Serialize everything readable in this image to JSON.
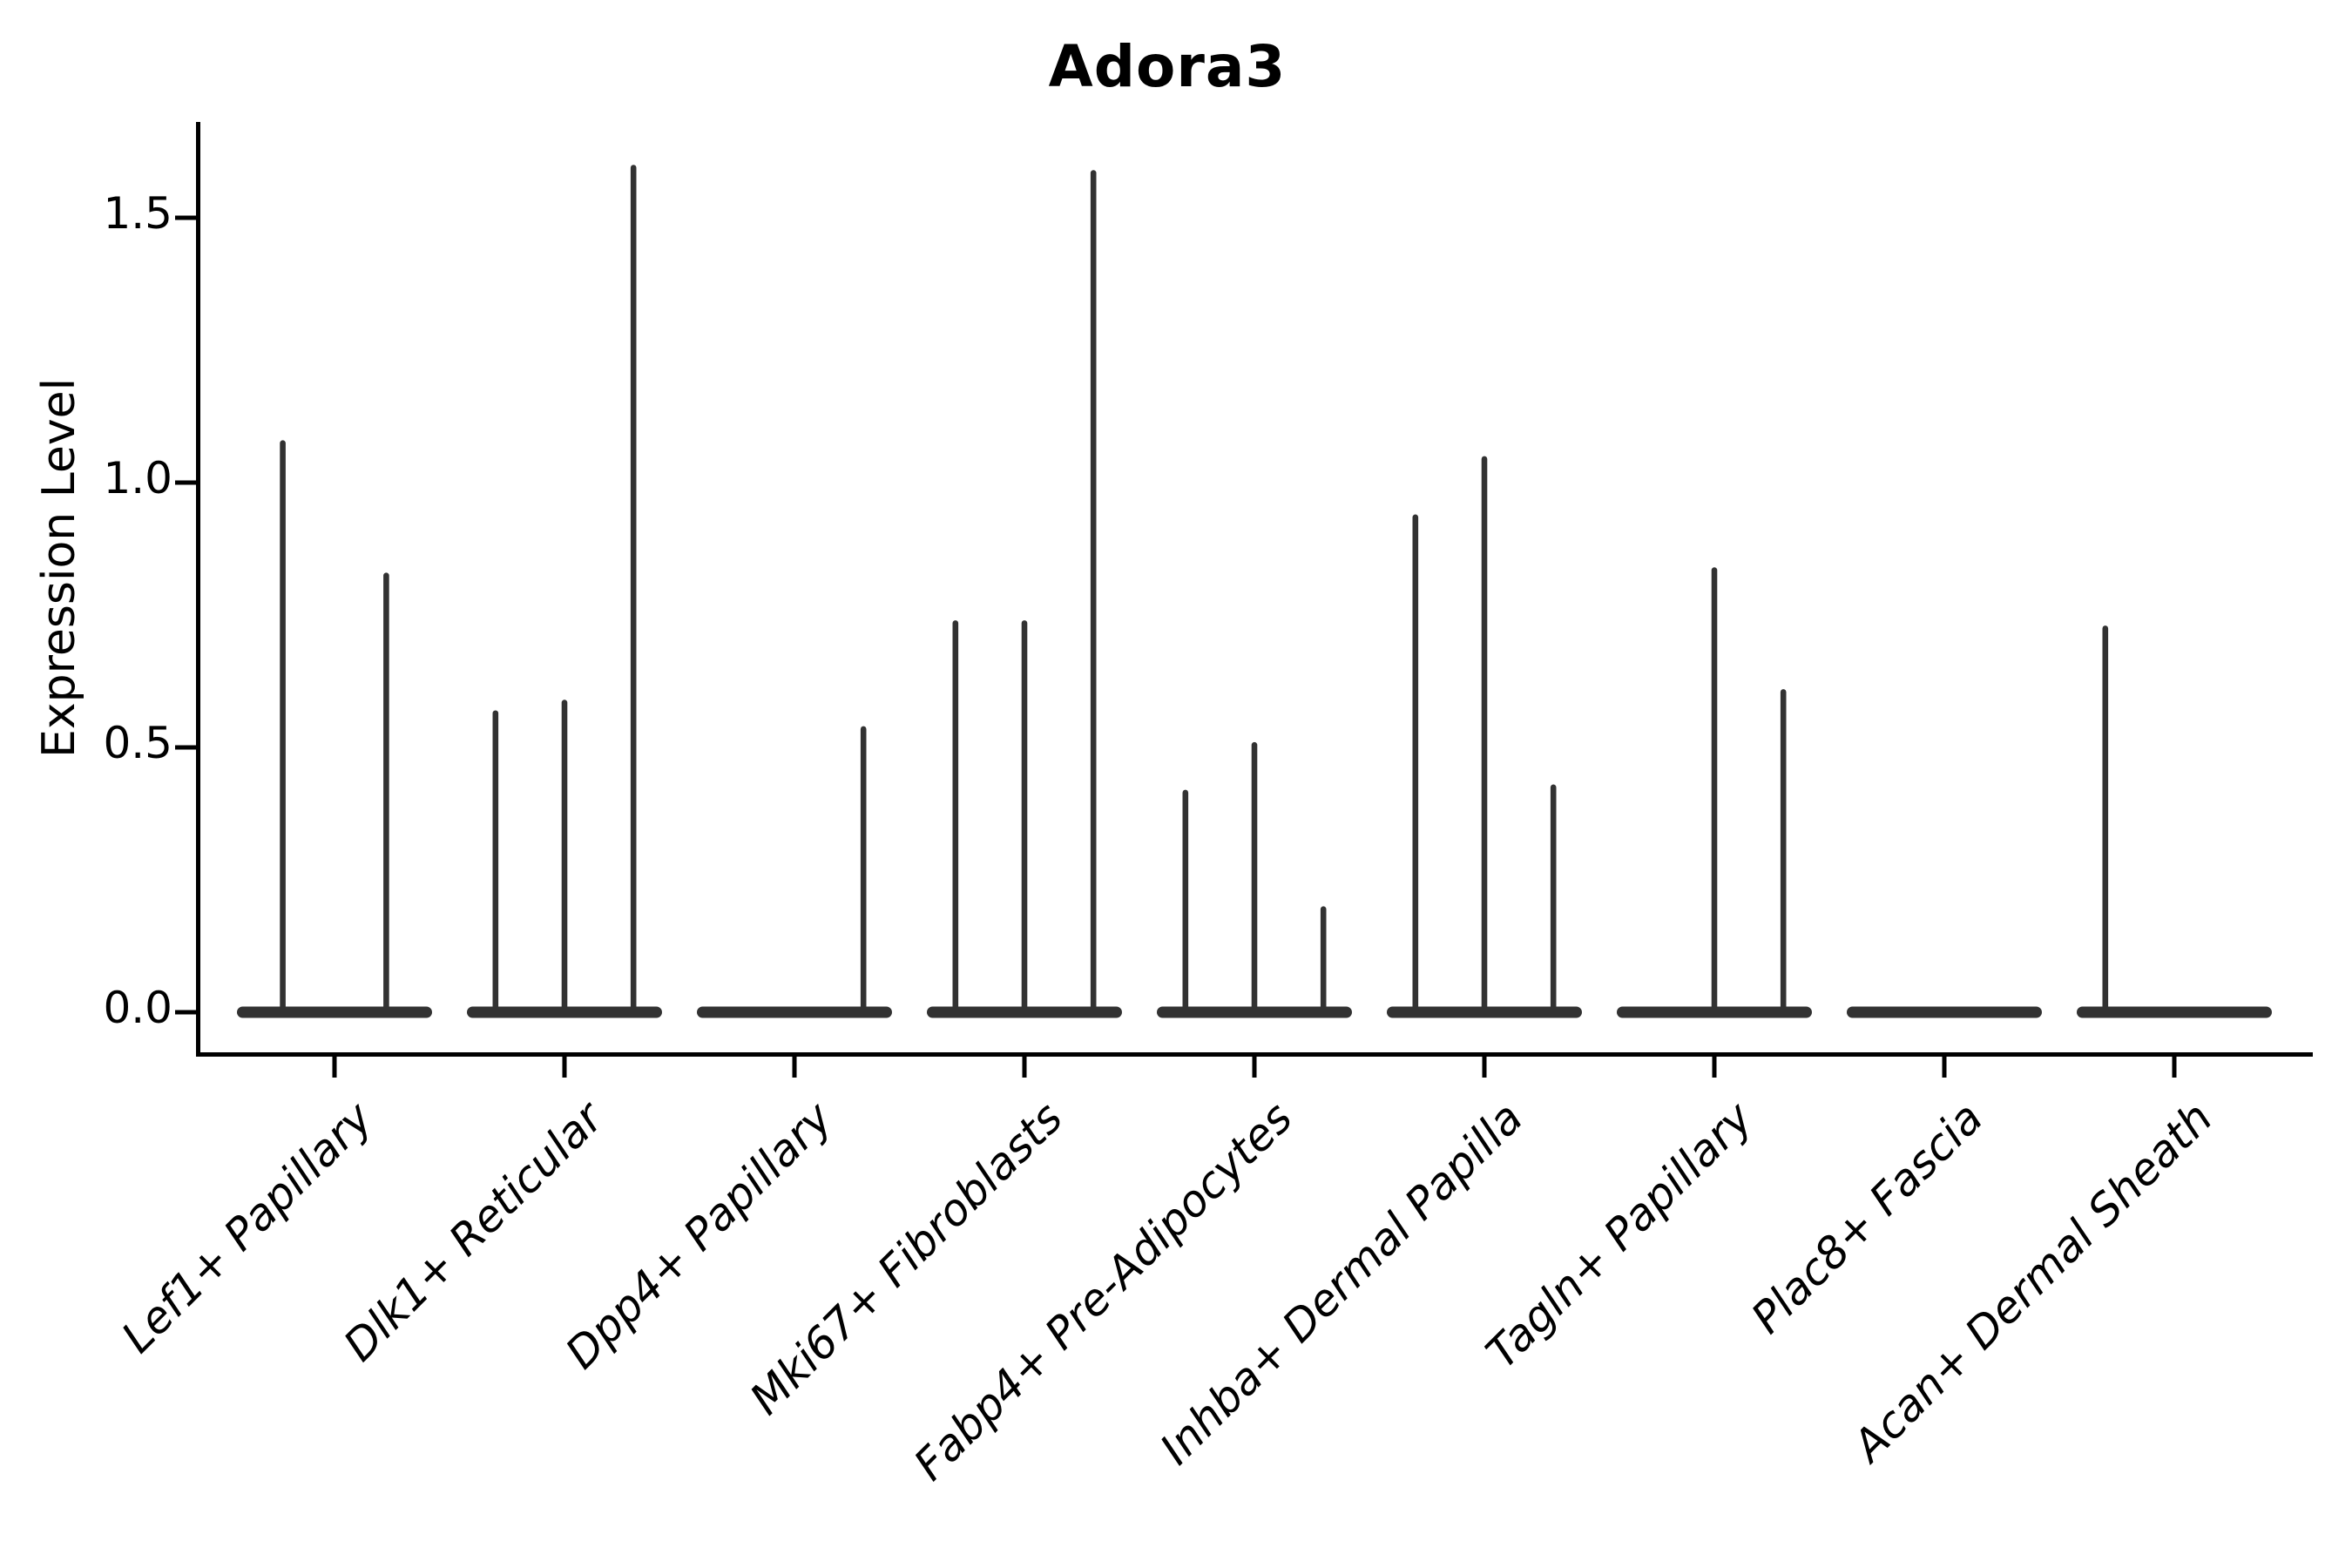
{
  "chart_data": {
    "type": "violin",
    "title": "Adora3",
    "ylabel": "Expression Level",
    "xlabel": "",
    "ylim": [
      -0.08,
      1.68
    ],
    "yticks": [
      0.0,
      0.5,
      1.0,
      1.5
    ],
    "ytick_labels": [
      "0.0",
      "0.5",
      "1.0",
      "1.5"
    ],
    "grid": false,
    "legend": "none",
    "violin_color": "#323232",
    "axis_color": "#000000",
    "value_meaning": "Each category holds dodged violins collapsed at 0 expression; value = top of each violin's thin spike (max expression level). 0 means a flat violin with no expressing cells.",
    "categories": [
      {
        "label": "Lef1+ Papillary",
        "violins": [
          1.08,
          0.83
        ]
      },
      {
        "label": "Dlk1+ Reticular",
        "violins": [
          0.57,
          0.59,
          1.6
        ]
      },
      {
        "label": "Dpp4+ Papillary",
        "violins": [
          0,
          0,
          0.54
        ]
      },
      {
        "label": "Mki67+ Fibroblasts",
        "violins": [
          0.74,
          0.74,
          1.59
        ]
      },
      {
        "label": "Fabp4+ Pre-Adipocytes",
        "violins": [
          0.42,
          0.51,
          0.2
        ]
      },
      {
        "label": "Inhba+ Dermal Papilla",
        "violins": [
          0.94,
          1.05,
          0.43
        ]
      },
      {
        "label": "Tagln+ Papillary",
        "violins": [
          0,
          0.84,
          0.61
        ]
      },
      {
        "label": "Plac8+ Fascia",
        "violins": [
          0,
          0,
          0
        ]
      },
      {
        "label": "Acan+ Dermal Sheath",
        "violins": [
          0.73,
          0,
          0
        ]
      }
    ]
  }
}
